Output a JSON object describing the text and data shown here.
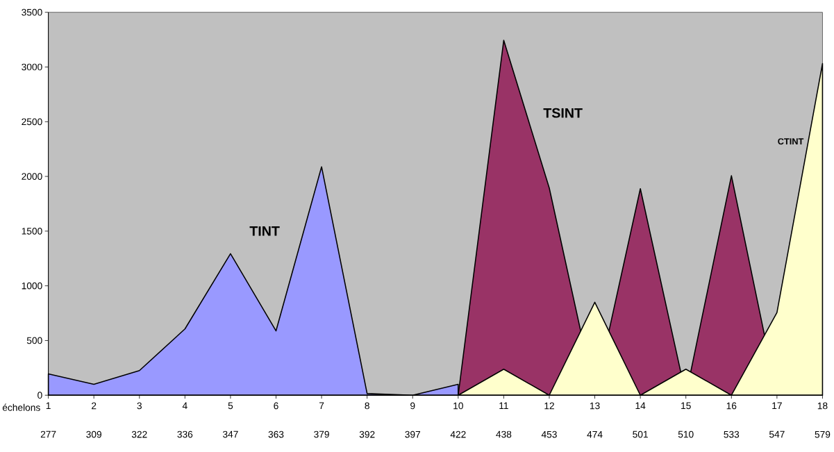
{
  "chart_data": {
    "type": "area",
    "xlabel": "échelons",
    "categories": [
      "1 277",
      "2 309",
      "3 322",
      "4 336",
      "5 347",
      "6 363",
      "7 379",
      "8 392",
      "9 397",
      "10 422",
      "11 438",
      "12 453",
      "13 474",
      "14 501",
      "15 510",
      "16 533",
      "17 547",
      "18 579"
    ],
    "series": [
      {
        "name": "TINT",
        "color": "#9999ff",
        "values": [
          195,
          100,
          225,
          606,
          1294,
          588,
          2088,
          15,
          0,
          100,
          null,
          null,
          null,
          null,
          null,
          null,
          null,
          null
        ]
      },
      {
        "name": "TSINT",
        "color": "#993366",
        "values": [
          null,
          null,
          null,
          null,
          null,
          null,
          null,
          null,
          null,
          0,
          3244,
          1894,
          0,
          1888,
          0,
          2006,
          0,
          0
        ]
      },
      {
        "name": "CTINT",
        "color": "#ffffcc",
        "values": [
          null,
          null,
          null,
          null,
          null,
          null,
          null,
          null,
          null,
          0,
          238,
          0,
          850,
          0,
          238,
          0,
          756,
          3031
        ]
      }
    ],
    "ylim": [
      0,
      3500
    ],
    "yticks": [
      0,
      500,
      1000,
      1500,
      2000,
      2500,
      3000,
      3500
    ]
  }
}
